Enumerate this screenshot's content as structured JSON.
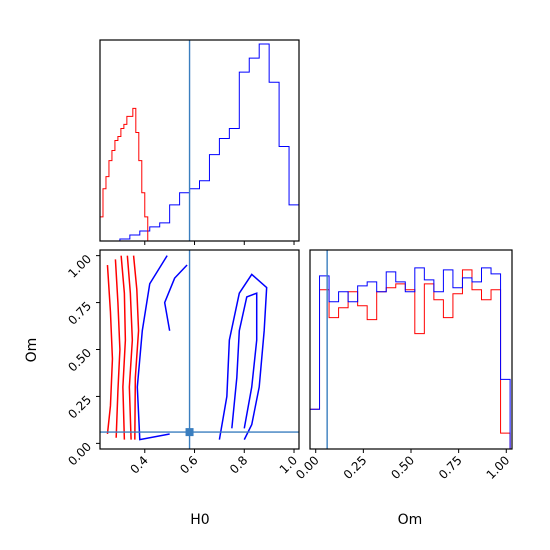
{
  "chart_data": {
    "type": "corner",
    "parameters": [
      "H0",
      "Om"
    ],
    "axis_labels": {
      "x_bottom_left": "H0",
      "x_bottom_right": "Om",
      "y_left": "Om"
    },
    "truth": {
      "H0": 0.58,
      "Om": 0.06,
      "color": "#3a7ebf"
    },
    "series": [
      {
        "color": "#ff0000"
      },
      {
        "color": "#0000ff"
      }
    ],
    "panels": {
      "hist_h0": {
        "xlim": [
          0.22,
          1.02
        ],
        "ticks": [
          0.4,
          0.6,
          0.8,
          1.0
        ],
        "bins": [
          0.22,
          0.26,
          0.3,
          0.34,
          0.38,
          0.42,
          0.46,
          0.5,
          0.54,
          0.58,
          0.62,
          0.66,
          0.7,
          0.74,
          0.78,
          0.82,
          0.86,
          0.9,
          0.94,
          0.98,
          1.02
        ],
        "red_edges": [
          0.22,
          0.232,
          0.244,
          0.256,
          0.268,
          0.28,
          0.292,
          0.304,
          0.316,
          0.328,
          0.34,
          0.352,
          0.364,
          0.376,
          0.388,
          0.4,
          0.412
        ],
        "red_counts": [
          0.12,
          0.26,
          0.32,
          0.4,
          0.45,
          0.5,
          0.52,
          0.56,
          0.58,
          0.62,
          0.62,
          0.66,
          0.54,
          0.4,
          0.24,
          0.12
        ],
        "blue_counts": [
          0,
          0,
          0.01,
          0.03,
          0.05,
          0.07,
          0.09,
          0.18,
          0.24,
          0.26,
          0.3,
          0.43,
          0.51,
          0.56,
          0.84,
          0.91,
          0.98,
          0.79,
          0.47,
          0.18
        ]
      },
      "hist_om": {
        "xlim": [
          -0.03,
          1.03
        ],
        "ticks": [
          0.0,
          0.25,
          0.5,
          0.75,
          1.0
        ],
        "tick_labels": [
          "0.00",
          "0.25",
          "0.50",
          "0.75",
          "1.00"
        ],
        "bins": [
          -0.03,
          0.02,
          0.07,
          0.12,
          0.17,
          0.22,
          0.27,
          0.32,
          0.37,
          0.42,
          0.47,
          0.52,
          0.57,
          0.62,
          0.67,
          0.72,
          0.77,
          0.82,
          0.87,
          0.92,
          0.97,
          1.02
        ],
        "red_counts": [
          0.2,
          0.8,
          0.66,
          0.71,
          0.79,
          0.72,
          0.65,
          0.79,
          0.81,
          0.83,
          0.8,
          0.58,
          0.83,
          0.75,
          0.66,
          0.78,
          0.9,
          0.8,
          0.75,
          0.8,
          0.08
        ],
        "blue_counts": [
          0.2,
          0.87,
          0.74,
          0.79,
          0.74,
          0.82,
          0.84,
          0.79,
          0.89,
          0.84,
          0.79,
          0.91,
          0.85,
          0.79,
          0.9,
          0.81,
          0.86,
          0.84,
          0.91,
          0.88,
          0.35
        ]
      },
      "contour": {
        "xlim": [
          0.22,
          1.02
        ],
        "ylim": [
          -0.03,
          1.03
        ],
        "xticks": [
          0.4,
          0.6,
          0.8,
          1.0
        ],
        "yticks": [
          0.0,
          0.25,
          0.5,
          0.75,
          1.0
        ],
        "ytick_labels": [
          "0.00",
          "0.25",
          "0.50",
          "0.75",
          "1.00"
        ],
        "red_contours": [
          [
            [
              0.25,
              0.95
            ],
            [
              0.262,
              0.7
            ],
            [
              0.27,
              0.45
            ],
            [
              0.262,
              0.2
            ],
            [
              0.25,
              0.05
            ]
          ],
          [
            [
              0.282,
              0.98
            ],
            [
              0.292,
              0.75
            ],
            [
              0.3,
              0.5
            ],
            [
              0.292,
              0.28
            ],
            [
              0.285,
              0.03
            ]
          ],
          [
            [
              0.305,
              1.0
            ],
            [
              0.318,
              0.8
            ],
            [
              0.322,
              0.55
            ],
            [
              0.312,
              0.3
            ],
            [
              0.318,
              0.02
            ]
          ],
          [
            [
              0.33,
              1.0
            ],
            [
              0.342,
              0.8
            ],
            [
              0.35,
              0.55
            ],
            [
              0.338,
              0.3
            ],
            [
              0.345,
              0.02
            ]
          ],
          [
            [
              0.355,
              1.0
            ],
            [
              0.368,
              0.82
            ],
            [
              0.375,
              0.6
            ],
            [
              0.362,
              0.35
            ],
            [
              0.36,
              0.02
            ]
          ]
        ],
        "blue_contours": [
          [
            [
              0.49,
              1.0
            ],
            [
              0.42,
              0.85
            ],
            [
              0.39,
              0.6
            ],
            [
              0.37,
              0.3
            ],
            [
              0.38,
              0.02
            ],
            [
              0.5,
              0.05
            ]
          ],
          [
            [
              0.7,
              0.02
            ],
            [
              0.73,
              0.25
            ],
            [
              0.74,
              0.55
            ],
            [
              0.78,
              0.8
            ],
            [
              0.83,
              0.9
            ],
            [
              0.89,
              0.83
            ],
            [
              0.88,
              0.6
            ],
            [
              0.86,
              0.3
            ],
            [
              0.83,
              0.1
            ],
            [
              0.8,
              0.02
            ]
          ],
          [
            [
              0.75,
              0.08
            ],
            [
              0.77,
              0.35
            ],
            [
              0.78,
              0.6
            ],
            [
              0.81,
              0.78
            ],
            [
              0.85,
              0.8
            ],
            [
              0.85,
              0.55
            ],
            [
              0.83,
              0.3
            ],
            [
              0.8,
              0.08
            ]
          ],
          [
            [
              0.5,
              0.6
            ],
            [
              0.48,
              0.75
            ],
            [
              0.52,
              0.88
            ],
            [
              0.57,
              0.95
            ]
          ]
        ]
      }
    }
  }
}
